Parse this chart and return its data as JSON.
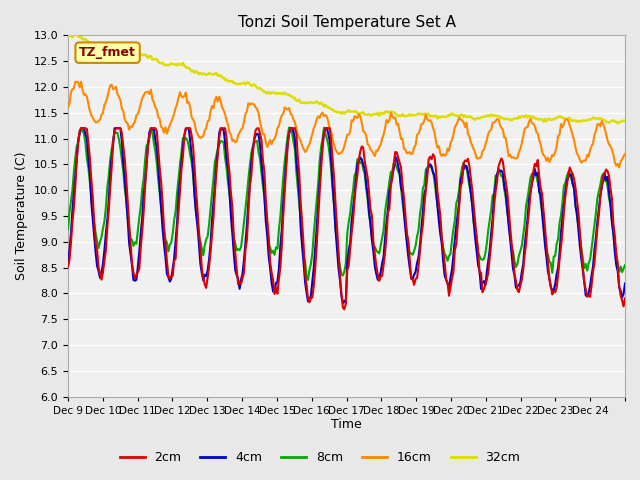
{
  "title": "Tonzi Soil Temperature Set A",
  "xlabel": "Time",
  "ylabel": "Soil Temperature (C)",
  "ylim": [
    6.0,
    13.0
  ],
  "yticks": [
    6.0,
    6.5,
    7.0,
    7.5,
    8.0,
    8.5,
    9.0,
    9.5,
    10.0,
    10.5,
    11.0,
    11.5,
    12.0,
    12.5,
    13.0
  ],
  "xtick_positions": [
    0,
    1,
    2,
    3,
    4,
    5,
    6,
    7,
    8,
    9,
    10,
    11,
    12,
    13,
    14,
    15,
    16
  ],
  "xtick_labels": [
    "Dec 9",
    "Dec 10",
    "Dec 11",
    "Dec 12",
    "Dec 13",
    "Dec 14",
    "Dec 15",
    "Dec 16",
    "Dec 17",
    "Dec 18",
    "Dec 19",
    "Dec 20",
    "Dec 21",
    "Dec 22",
    "Dec 23",
    "Dec 24",
    ""
  ],
  "legend_labels": [
    "2cm",
    "4cm",
    "8cm",
    "16cm",
    "32cm"
  ],
  "legend_colors": [
    "#dd0000",
    "#0000cc",
    "#00aa00",
    "#ff8800",
    "#dddd00"
  ],
  "watermark_text": "TZ_fmet",
  "watermark_bg": "#ffffaa",
  "watermark_border": "#cc8800",
  "background_color": "#e8e8e8",
  "plot_bg_color": "#f0f0f0",
  "n_points": 384,
  "depths": {
    "2cm": {
      "color": "#dd0000",
      "lw": 1.5
    },
    "4cm": {
      "color": "#0000cc",
      "lw": 1.5
    },
    "8cm": {
      "color": "#00aa00",
      "lw": 1.5
    },
    "16cm": {
      "color": "#ff8800",
      "lw": 1.5
    },
    "32cm": {
      "color": "#dddd00",
      "lw": 1.8
    }
  }
}
